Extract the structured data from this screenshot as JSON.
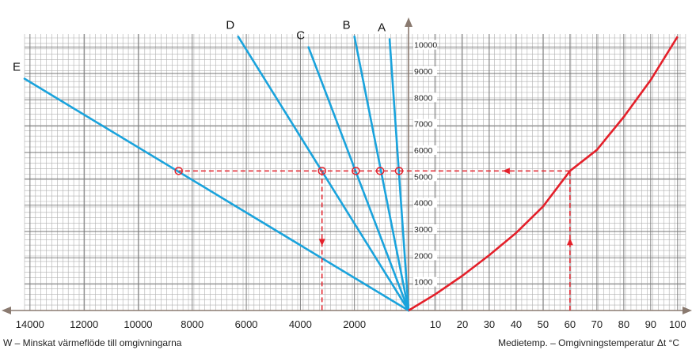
{
  "chart_data": {
    "type": "line",
    "left_panel": {
      "xlabel": "W – Minskat värmeflöde till omgivningarna",
      "x_ticks": [
        "14000",
        "12000",
        "10000",
        "8000",
        "6000",
        "4000",
        "2000"
      ],
      "xlim": [
        14200,
        0
      ],
      "series": [
        {
          "name": "A",
          "points": [
            [
              0,
              0
            ],
            [
              700,
              10300
            ]
          ]
        },
        {
          "name": "B",
          "points": [
            [
              0,
              0
            ],
            [
              2000,
              10400
            ]
          ]
        },
        {
          "name": "C",
          "points": [
            [
              0,
              0
            ],
            [
              3700,
              10000
            ]
          ]
        },
        {
          "name": "D",
          "points": [
            [
              0,
              0
            ],
            [
              6300,
              10400
            ]
          ]
        },
        {
          "name": "E",
          "points": [
            [
              0,
              0
            ],
            [
              14200,
              8800
            ]
          ]
        }
      ],
      "markers": [
        [
          8500,
          5300
        ],
        [
          3200,
          5300
        ],
        [
          1950,
          5300
        ],
        [
          1050,
          5300
        ],
        [
          350,
          5300
        ]
      ]
    },
    "shared_y": {
      "ticks": [
        "1000",
        "2000",
        "3000",
        "4000",
        "5000",
        "6000",
        "7000",
        "8000",
        "9000",
        "10000"
      ],
      "ylim": [
        0,
        10500
      ]
    },
    "right_panel": {
      "xlabel": "Medietemp. – Omgivningstemperatur Δt °C",
      "x_ticks": [
        "10",
        "20",
        "30",
        "40",
        "50",
        "60",
        "70",
        "80",
        "90",
        "100"
      ],
      "xlim": [
        0,
        103
      ],
      "curve": {
        "name": "",
        "points": [
          [
            0,
            0
          ],
          [
            10,
            620
          ],
          [
            20,
            1320
          ],
          [
            30,
            2100
          ],
          [
            40,
            2950
          ],
          [
            50,
            3950
          ],
          [
            60,
            5300
          ],
          [
            70,
            6100
          ],
          [
            80,
            7350
          ],
          [
            90,
            8750
          ],
          [
            100,
            10400
          ]
        ]
      }
    },
    "reading_example": {
      "delta_t": 60,
      "y": 5300,
      "reading_w": 3200
    },
    "colors": {
      "lines": "#1aa3dc",
      "curve": "#e4202a",
      "dashed": "#e4202a",
      "grid": "#b0b0b0",
      "axis": "#8a7a70"
    }
  }
}
